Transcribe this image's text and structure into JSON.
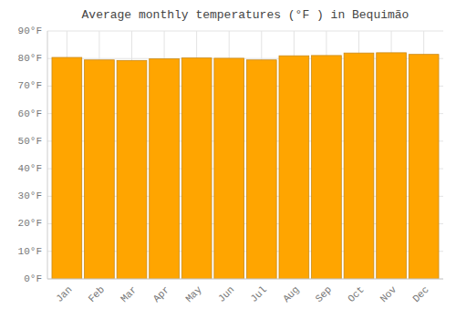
{
  "chart_data": {
    "type": "bar",
    "title": "Average monthly temperatures (°F ) in Bequimão",
    "categories": [
      "Jan",
      "Feb",
      "Mar",
      "Apr",
      "May",
      "Jun",
      "Jul",
      "Aug",
      "Sep",
      "Oct",
      "Nov",
      "Dec"
    ],
    "values": [
      80.4,
      79.5,
      79.3,
      79.9,
      80.2,
      80.1,
      79.5,
      81.0,
      81.1,
      82.0,
      82.1,
      81.5
    ],
    "color": "#FFA500",
    "ylim": [
      0,
      90
    ],
    "yticks": [
      {
        "value": 0,
        "label": "0°F"
      },
      {
        "value": 10,
        "label": "10°F"
      },
      {
        "value": 20,
        "label": "20°F"
      },
      {
        "value": 30,
        "label": "30°F"
      },
      {
        "value": 40,
        "label": "40°F"
      },
      {
        "value": 50,
        "label": "50°F"
      },
      {
        "value": 60,
        "label": "60°F"
      },
      {
        "value": 70,
        "label": "70°F"
      },
      {
        "value": 80,
        "label": "80°F"
      },
      {
        "value": 90,
        "label": "90°F"
      }
    ],
    "grid": true
  }
}
